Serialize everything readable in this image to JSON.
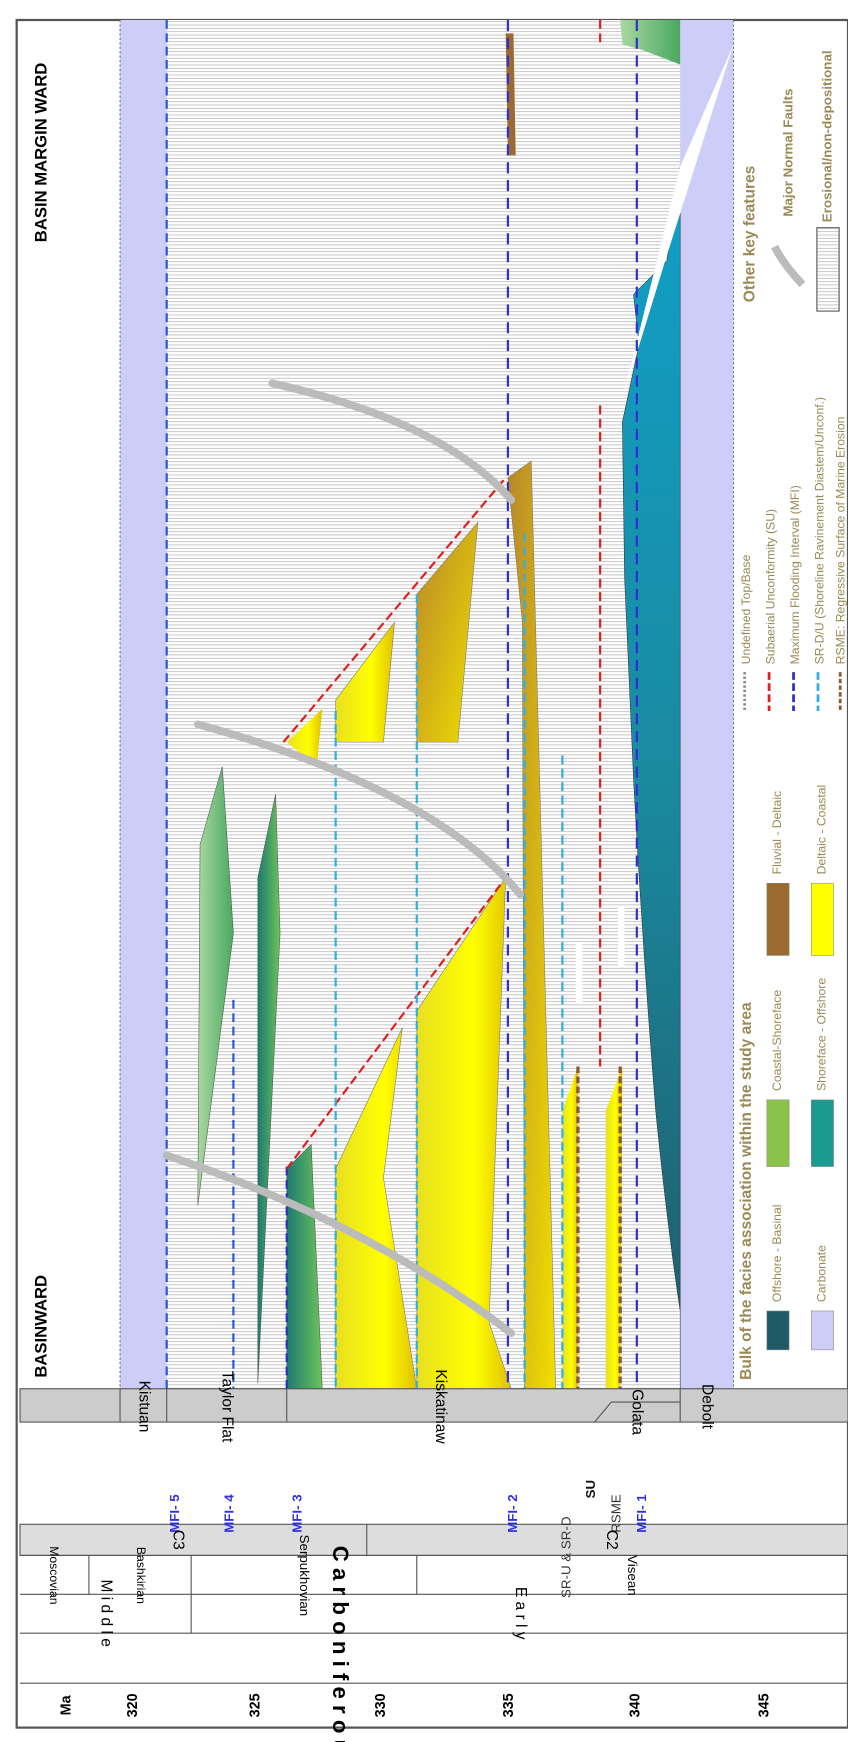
{
  "header": {
    "left": "BASINWARD",
    "right": "BASIN MARGIN WARD"
  },
  "time_axis": {
    "unit": "Ma",
    "ticks": [
      "320",
      "325",
      "330",
      "335",
      "340",
      "345"
    ]
  },
  "period": "C a r b o n i f e r o u s",
  "epochs": [
    "M i d d l e",
    "E a r l y"
  ],
  "stages": [
    "Moscovian",
    "Bashkirian",
    "Serpukhovian",
    "Visean"
  ],
  "cycles": [
    "C3",
    "C2"
  ],
  "surfaces": [
    "MFI- 5",
    "MFI- 4",
    "MFI- 3",
    "MFI- 2",
    "SR-U & SR-D",
    "SU",
    "RSME",
    "MFI- 1"
  ],
  "formations": [
    "Kistuan",
    "Taylor Flat",
    "Kiskatinaw",
    "Golata",
    "Debolt"
  ],
  "legend": {
    "title": "Bulk of the facies association within the study area",
    "facies": [
      "Offshore - Basinal",
      "Carbonate",
      "Coastal-Shoreface",
      "Shoreface - Offshore",
      "Fluvial - Deltaic",
      "Deltaic - Coastal"
    ],
    "lines": [
      "Undefined Top/Base",
      "Subaerial Unconformity (SU)",
      "Maximum Flooding Interval (MFI)",
      "SR-D/U (Shoreline Ravinement Diastem/Unconf.)",
      "RSME: Regressive Surface of Marine Erosion"
    ],
    "other_title": "Other key features",
    "other": [
      "Major Normal Faults",
      "Erosional/non-depositional"
    ]
  }
}
